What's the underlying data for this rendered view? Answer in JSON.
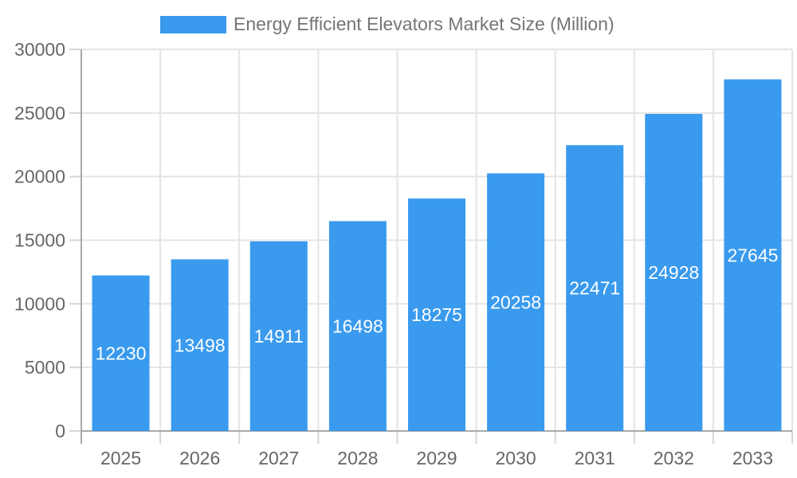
{
  "chart_data": {
    "type": "bar",
    "title": "Energy Efficient Elevators Market Size (Million)",
    "legend": {
      "label": "Energy Efficient Elevators Market Size (Million)",
      "position": "top"
    },
    "categories": [
      "2025",
      "2026",
      "2027",
      "2028",
      "2029",
      "2030",
      "2031",
      "2032",
      "2033"
    ],
    "values": [
      12230,
      13498,
      14911,
      16498,
      18275,
      20258,
      22471,
      24928,
      27645
    ],
    "xlabel": "",
    "ylabel": "",
    "ylim": [
      0,
      30000
    ],
    "yticks": [
      0,
      5000,
      10000,
      15000,
      20000,
      25000,
      30000
    ],
    "grid": true,
    "value_labels": "centered-white-inside-bars",
    "colors": {
      "bar": "#399AEE",
      "value_label": "#FFFFFF",
      "axis_label": "#666666",
      "title": "#757575",
      "gridline": "#E4E4E4",
      "axis_line": "#A9A9A9",
      "tick": "#D6D6D6",
      "background": "#FFFFFF"
    }
  }
}
